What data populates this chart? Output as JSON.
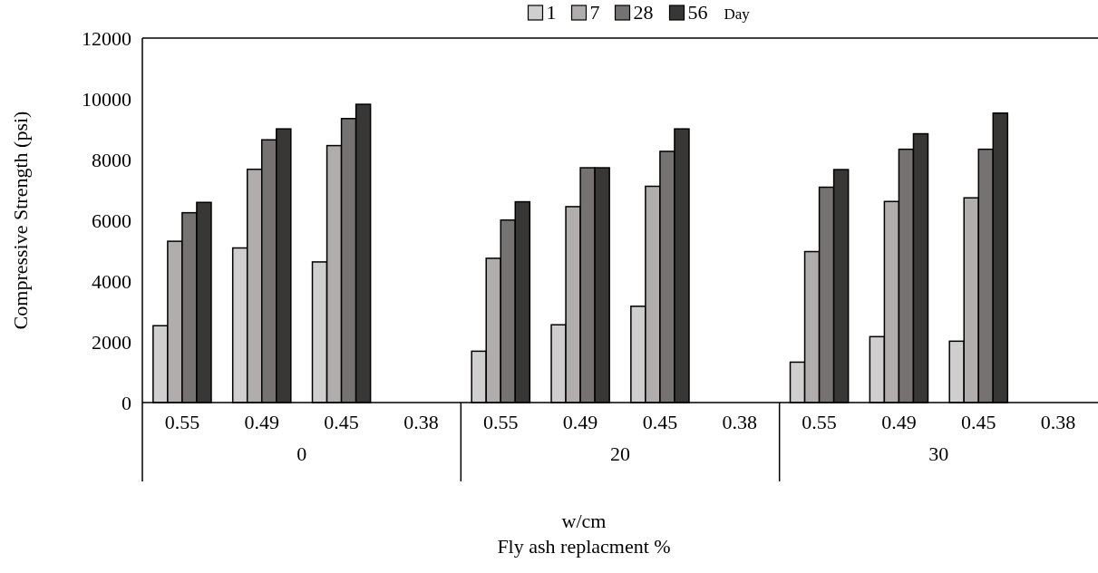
{
  "chart_data": {
    "type": "bar",
    "xlabel": "w/cm",
    "ylabel": "Compressive Strength (psi)",
    "legend_title": "Day",
    "legend": "top",
    "categories": [
      "0.55",
      "0.49",
      "0.45",
      "0.38",
      "0.55",
      "0.49",
      "0.45",
      "0.38",
      "0.55",
      "0.49",
      "0.45",
      "0.38"
    ],
    "series": [
      {
        "name": "1",
        "color": "#d0cecf",
        "values": [
          2530,
          5090,
          4630,
          null,
          1690,
          2560,
          3170,
          null,
          1330,
          2170,
          2020,
          null
        ]
      },
      {
        "name": "7",
        "color": "#b0adac",
        "values": [
          5310,
          7680,
          8460,
          null,
          4750,
          6450,
          7120,
          null,
          4970,
          6620,
          6740,
          null
        ]
      },
      {
        "name": "28",
        "color": "#767271",
        "values": [
          6250,
          8650,
          9350,
          null,
          6010,
          7730,
          8270,
          null,
          7090,
          8340,
          8340,
          null
        ]
      },
      {
        "name": "56",
        "color": "#393736",
        "values": [
          6590,
          9010,
          9820,
          null,
          6610,
          7730,
          9010,
          null,
          7670,
          8850,
          9530,
          null
        ]
      }
    ],
    "ylim": [
      0,
      12000
    ],
    "yticks": [
      0,
      2000,
      4000,
      6000,
      8000,
      10000,
      12000
    ],
    "grid": false,
    "annotations": [
      "0",
      "20",
      "30",
      "Fly ash replacment %"
    ]
  }
}
